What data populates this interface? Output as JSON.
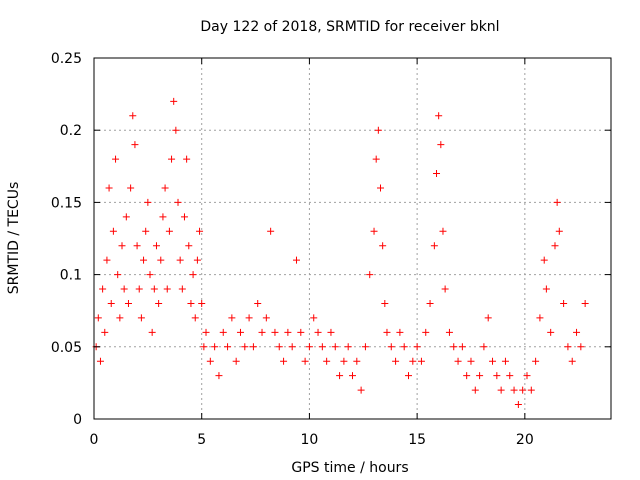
{
  "chart_data": {
    "type": "scatter",
    "title": "Day 122 of 2018, SRMTID for receiver bknl",
    "xlabel": "GPS time / hours",
    "ylabel": "SRMTID / TECUs",
    "xlim": [
      0,
      24
    ],
    "ylim": [
      0,
      0.25
    ],
    "xticks": [
      0,
      5,
      10,
      15,
      20
    ],
    "xtick_labels": [
      "0",
      "5",
      "10",
      "15",
      "20"
    ],
    "yticks": [
      0,
      0.05,
      0.1,
      0.15,
      0.2,
      0.25
    ],
    "ytick_labels": [
      "0",
      "0.05",
      "0.1",
      "0.15",
      "0.2",
      "0.25"
    ],
    "grid": true,
    "marker": "+",
    "color": "#ff0000",
    "series": [
      {
        "name": "SRMTID",
        "points": [
          [
            0.1,
            0.05
          ],
          [
            0.2,
            0.07
          ],
          [
            0.3,
            0.04
          ],
          [
            0.4,
            0.09
          ],
          [
            0.5,
            0.06
          ],
          [
            0.6,
            0.11
          ],
          [
            0.7,
            0.16
          ],
          [
            0.8,
            0.08
          ],
          [
            0.9,
            0.13
          ],
          [
            1.0,
            0.18
          ],
          [
            1.1,
            0.1
          ],
          [
            1.2,
            0.07
          ],
          [
            1.3,
            0.12
          ],
          [
            1.4,
            0.09
          ],
          [
            1.5,
            0.14
          ],
          [
            1.6,
            0.08
          ],
          [
            1.7,
            0.16
          ],
          [
            1.8,
            0.21
          ],
          [
            1.9,
            0.19
          ],
          [
            2.0,
            0.12
          ],
          [
            2.1,
            0.09
          ],
          [
            2.2,
            0.07
          ],
          [
            2.3,
            0.11
          ],
          [
            2.4,
            0.13
          ],
          [
            2.5,
            0.15
          ],
          [
            2.6,
            0.1
          ],
          [
            2.7,
            0.06
          ],
          [
            2.8,
            0.09
          ],
          [
            2.9,
            0.12
          ],
          [
            3.0,
            0.08
          ],
          [
            3.1,
            0.11
          ],
          [
            3.2,
            0.14
          ],
          [
            3.3,
            0.16
          ],
          [
            3.4,
            0.09
          ],
          [
            3.5,
            0.13
          ],
          [
            3.6,
            0.18
          ],
          [
            3.7,
            0.22
          ],
          [
            3.8,
            0.2
          ],
          [
            3.9,
            0.15
          ],
          [
            4.0,
            0.11
          ],
          [
            4.1,
            0.09
          ],
          [
            4.2,
            0.14
          ],
          [
            4.3,
            0.18
          ],
          [
            4.4,
            0.12
          ],
          [
            4.5,
            0.08
          ],
          [
            4.6,
            0.1
          ],
          [
            4.7,
            0.07
          ],
          [
            4.8,
            0.11
          ],
          [
            4.9,
            0.13
          ],
          [
            5.0,
            0.08
          ],
          [
            5.1,
            0.05
          ],
          [
            5.2,
            0.06
          ],
          [
            5.4,
            0.04
          ],
          [
            5.6,
            0.05
          ],
          [
            5.8,
            0.03
          ],
          [
            6.0,
            0.06
          ],
          [
            6.2,
            0.05
          ],
          [
            6.4,
            0.07
          ],
          [
            6.6,
            0.04
          ],
          [
            6.8,
            0.06
          ],
          [
            7.0,
            0.05
          ],
          [
            7.2,
            0.07
          ],
          [
            7.4,
            0.05
          ],
          [
            7.6,
            0.08
          ],
          [
            7.8,
            0.06
          ],
          [
            8.0,
            0.07
          ],
          [
            8.2,
            0.13
          ],
          [
            8.4,
            0.06
          ],
          [
            8.6,
            0.05
          ],
          [
            8.8,
            0.04
          ],
          [
            9.0,
            0.06
          ],
          [
            9.2,
            0.05
          ],
          [
            9.4,
            0.11
          ],
          [
            9.6,
            0.06
          ],
          [
            9.8,
            0.04
          ],
          [
            10.0,
            0.05
          ],
          [
            10.2,
            0.07
          ],
          [
            10.4,
            0.06
          ],
          [
            10.6,
            0.05
          ],
          [
            10.8,
            0.04
          ],
          [
            11.0,
            0.06
          ],
          [
            11.2,
            0.05
          ],
          [
            11.4,
            0.03
          ],
          [
            11.6,
            0.04
          ],
          [
            11.8,
            0.05
          ],
          [
            12.0,
            0.03
          ],
          [
            12.2,
            0.04
          ],
          [
            12.4,
            0.02
          ],
          [
            12.6,
            0.05
          ],
          [
            12.8,
            0.1
          ],
          [
            13.0,
            0.13
          ],
          [
            13.1,
            0.18
          ],
          [
            13.2,
            0.2
          ],
          [
            13.3,
            0.16
          ],
          [
            13.4,
            0.12
          ],
          [
            13.5,
            0.08
          ],
          [
            13.6,
            0.06
          ],
          [
            13.8,
            0.05
          ],
          [
            14.0,
            0.04
          ],
          [
            14.2,
            0.06
          ],
          [
            14.4,
            0.05
          ],
          [
            14.6,
            0.03
          ],
          [
            14.8,
            0.04
          ],
          [
            15.0,
            0.05
          ],
          [
            15.2,
            0.04
          ],
          [
            15.4,
            0.06
          ],
          [
            15.6,
            0.08
          ],
          [
            15.8,
            0.12
          ],
          [
            15.9,
            0.17
          ],
          [
            16.0,
            0.21
          ],
          [
            16.1,
            0.19
          ],
          [
            16.2,
            0.13
          ],
          [
            16.3,
            0.09
          ],
          [
            16.5,
            0.06
          ],
          [
            16.7,
            0.05
          ],
          [
            16.9,
            0.04
          ],
          [
            17.1,
            0.05
          ],
          [
            17.3,
            0.03
          ],
          [
            17.5,
            0.04
          ],
          [
            17.7,
            0.02
          ],
          [
            17.9,
            0.03
          ],
          [
            18.1,
            0.05
          ],
          [
            18.3,
            0.07
          ],
          [
            18.5,
            0.04
          ],
          [
            18.7,
            0.03
          ],
          [
            18.9,
            0.02
          ],
          [
            19.1,
            0.04
          ],
          [
            19.3,
            0.03
          ],
          [
            19.5,
            0.02
          ],
          [
            19.7,
            0.01
          ],
          [
            19.9,
            0.02
          ],
          [
            20.1,
            0.03
          ],
          [
            20.3,
            0.02
          ],
          [
            20.5,
            0.04
          ],
          [
            20.7,
            0.07
          ],
          [
            20.9,
            0.11
          ],
          [
            21.0,
            0.09
          ],
          [
            21.2,
            0.06
          ],
          [
            21.4,
            0.12
          ],
          [
            21.5,
            0.15
          ],
          [
            21.6,
            0.13
          ],
          [
            21.8,
            0.08
          ],
          [
            22.0,
            0.05
          ],
          [
            22.2,
            0.04
          ],
          [
            22.4,
            0.06
          ],
          [
            22.6,
            0.05
          ],
          [
            22.8,
            0.08
          ]
        ]
      }
    ]
  }
}
